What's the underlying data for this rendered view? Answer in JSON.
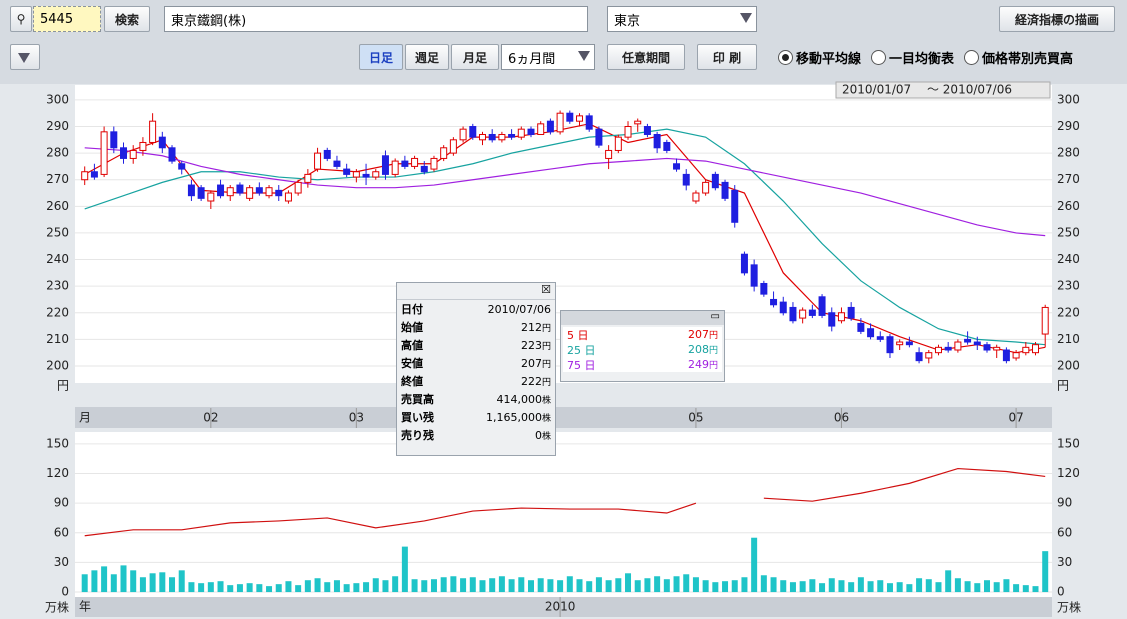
{
  "toolbar": {
    "code": "5445",
    "search": "検索",
    "company": "東京鐵鋼(株)",
    "market": "東京",
    "economic": "経済指標の描画",
    "periods": [
      "日足",
      "週足",
      "月足"
    ],
    "span": "6ヵ月間",
    "custom": "任意期間",
    "print": "印 刷",
    "overlays": [
      "移動平均線",
      "一目均衡表",
      "価格帯別売買高"
    ],
    "date_range": "2010/01/07　 ～ 2010/07/06"
  },
  "info_box": {
    "rows": [
      {
        "label": "日付",
        "value": "2010/07/06"
      },
      {
        "label": "始値",
        "value": 212,
        "unit": "円"
      },
      {
        "label": "高値",
        "value": 223,
        "unit": "円"
      },
      {
        "label": "安値",
        "value": 207,
        "unit": "円"
      },
      {
        "label": "終値",
        "value": 222,
        "unit": "円"
      },
      {
        "label": "売買高",
        "value": 414000,
        "value_label": "414,000",
        "unit": "株"
      },
      {
        "label": "買い残",
        "value": 1165000,
        "value_label": "1,165,000",
        "unit": "株"
      },
      {
        "label": "売り残",
        "value": 0,
        "unit": "株"
      }
    ]
  },
  "chart_data": [
    {
      "type": "candlestick",
      "y_unit": "円",
      "x_unit": "月",
      "xlim": [
        -1,
        99.7
      ],
      "ylim": [
        193.6,
        305.6
      ],
      "yticks": [
        200,
        210,
        220,
        230,
        240,
        250,
        260,
        270,
        280,
        290,
        300
      ],
      "xticks": [
        {
          "value": 13,
          "label": "02"
        },
        {
          "value": 28,
          "label": "03"
        },
        {
          "value": 63,
          "label": "05"
        },
        {
          "value": 78,
          "label": "06"
        },
        {
          "value": 96,
          "label": "07"
        }
      ],
      "up_color": "#e00000",
      "down_color": "#1f1fe0",
      "candles": [
        [
          270,
          275,
          268,
          273
        ],
        [
          273,
          276,
          270,
          271
        ],
        [
          272,
          290,
          271,
          288
        ],
        [
          288,
          290,
          280,
          282
        ],
        [
          282,
          284,
          276,
          278
        ],
        [
          278,
          283,
          276,
          281
        ],
        [
          281,
          286,
          279,
          284
        ],
        [
          284,
          295,
          283,
          292
        ],
        [
          286,
          288,
          280,
          282
        ],
        [
          282,
          283,
          276,
          277
        ],
        [
          276,
          277,
          272,
          274
        ],
        [
          268,
          270,
          262,
          264
        ],
        [
          267,
          268,
          262,
          263
        ],
        [
          262,
          266,
          259,
          265
        ],
        [
          268,
          270,
          263,
          264
        ],
        [
          264,
          268,
          262,
          267
        ],
        [
          268,
          269,
          264,
          265
        ],
        [
          263,
          268,
          262,
          267
        ],
        [
          267,
          269,
          264,
          265
        ],
        [
          264,
          268,
          263,
          267
        ],
        [
          266,
          268,
          262,
          264
        ],
        [
          262,
          266,
          261,
          265
        ],
        [
          265,
          270,
          264,
          269
        ],
        [
          269,
          274,
          267,
          272
        ],
        [
          274,
          282,
          273,
          280
        ],
        [
          281,
          282,
          277,
          278
        ],
        [
          277,
          279,
          274,
          275
        ],
        [
          274,
          276,
          271,
          272
        ],
        [
          271,
          274,
          269,
          273
        ],
        [
          272,
          276,
          268,
          271
        ],
        [
          271,
          274,
          270,
          273
        ],
        [
          279,
          281,
          270,
          272
        ],
        [
          272,
          278,
          271,
          277
        ],
        [
          277,
          279,
          274,
          275
        ],
        [
          275,
          279,
          274,
          278
        ],
        [
          275,
          277,
          272,
          273
        ],
        [
          274,
          279,
          273,
          278
        ],
        [
          278,
          283,
          277,
          282
        ],
        [
          280,
          286,
          279,
          285
        ],
        [
          285,
          290,
          284,
          289
        ],
        [
          290,
          291,
          285,
          286
        ],
        [
          285,
          288,
          283,
          287
        ],
        [
          287,
          289,
          284,
          285
        ],
        [
          285,
          288,
          284,
          287
        ],
        [
          287,
          289,
          285,
          286
        ],
        [
          286,
          290,
          285,
          289
        ],
        [
          289,
          290,
          286,
          287
        ],
        [
          287,
          292,
          287,
          291
        ],
        [
          292,
          293,
          287,
          288
        ],
        [
          288,
          296,
          287,
          295
        ],
        [
          295,
          296,
          291,
          292
        ],
        [
          292,
          295,
          290,
          294
        ],
        [
          294,
          295,
          288,
          289
        ],
        [
          289,
          290,
          282,
          283
        ],
        [
          278,
          283,
          274,
          281
        ],
        [
          281,
          287,
          280,
          286
        ],
        [
          286,
          292,
          285,
          290
        ],
        [
          291,
          293,
          288,
          292
        ],
        [
          290,
          291,
          286,
          287
        ],
        [
          287,
          288,
          280,
          282
        ],
        [
          284,
          285,
          280,
          281
        ],
        [
          276,
          278,
          273,
          274
        ],
        [
          272,
          274,
          266,
          268
        ],
        [
          262,
          266,
          261,
          265
        ],
        [
          265,
          270,
          264,
          269
        ],
        [
          272,
          273,
          266,
          267
        ],
        [
          269,
          270,
          262,
          263
        ],
        [
          266,
          268,
          252,
          254
        ],
        [
          242,
          243,
          234,
          235
        ],
        [
          238,
          240,
          228,
          230
        ],
        [
          231,
          232,
          226,
          227
        ],
        [
          225,
          228,
          222,
          223
        ],
        [
          224,
          226,
          219,
          220
        ],
        [
          222,
          224,
          216,
          217
        ],
        [
          218,
          222,
          216,
          221
        ],
        [
          221,
          223,
          218,
          219
        ],
        [
          226,
          227,
          218,
          219
        ],
        [
          220,
          222,
          213,
          215
        ],
        [
          217,
          222,
          216,
          220
        ],
        [
          222,
          224,
          217,
          218
        ],
        [
          216,
          218,
          212,
          213
        ],
        [
          214,
          216,
          210,
          211
        ],
        [
          211,
          213,
          209,
          210
        ],
        [
          211,
          212,
          203,
          205
        ],
        [
          208,
          210,
          206,
          209
        ],
        [
          209,
          211,
          207,
          208
        ],
        [
          205,
          207,
          201,
          202
        ],
        [
          203,
          206,
          201,
          205
        ],
        [
          205,
          208,
          204,
          207
        ],
        [
          207,
          209,
          205,
          206
        ],
        [
          206,
          210,
          205,
          209
        ],
        [
          210,
          213,
          208,
          209
        ],
        [
          209,
          211,
          206,
          208
        ],
        [
          208,
          209,
          205,
          206
        ],
        [
          206,
          208,
          203,
          207
        ],
        [
          206,
          207,
          201,
          202
        ],
        [
          203,
          206,
          202,
          205
        ],
        [
          205,
          209,
          204,
          207
        ],
        [
          205,
          209,
          204,
          208
        ],
        [
          212,
          223,
          207,
          222
        ]
      ],
      "series": [
        {
          "name": "5 日",
          "color": "#e00000",
          "latest": 207,
          "x": [
            0,
            4,
            8,
            12,
            16,
            20,
            24,
            28,
            32,
            36,
            40,
            44,
            48,
            52,
            56,
            60,
            64,
            68,
            72,
            76,
            80,
            84,
            88,
            92,
            96,
            99
          ],
          "values": [
            272,
            280,
            285,
            266,
            265,
            265,
            274,
            273,
            276,
            276,
            286,
            286,
            288,
            291,
            284,
            287,
            270,
            265,
            235,
            220,
            217,
            211,
            206,
            208,
            205,
            207
          ]
        },
        {
          "name": "25 日",
          "color": "#17a3a0",
          "latest": 208,
          "x": [
            0,
            4,
            8,
            12,
            16,
            20,
            24,
            28,
            32,
            36,
            40,
            44,
            48,
            52,
            56,
            60,
            64,
            68,
            72,
            76,
            80,
            84,
            88,
            92,
            96,
            99
          ],
          "values": [
            259,
            264,
            269,
            273,
            273,
            271,
            270,
            271,
            271,
            273,
            276,
            280,
            283,
            286,
            287,
            289,
            286,
            276,
            262,
            246,
            232,
            222,
            214,
            210,
            209,
            208
          ]
        },
        {
          "name": "75 日",
          "color": "#a020e0",
          "latest": 249,
          "x": [
            0,
            4,
            8,
            12,
            16,
            20,
            24,
            28,
            32,
            36,
            40,
            44,
            48,
            52,
            56,
            60,
            64,
            68,
            72,
            76,
            80,
            84,
            88,
            92,
            96,
            99
          ],
          "values": [
            282,
            281,
            279,
            275,
            272,
            270,
            268,
            267,
            267,
            268,
            270,
            272,
            274,
            276,
            277,
            278,
            277,
            274,
            271,
            268,
            265,
            261,
            257,
            253,
            250,
            249
          ]
        }
      ]
    },
    {
      "type": "bar",
      "y_unit": "万株",
      "x_unit": "年",
      "xlim": [
        -1,
        99.7
      ],
      "ylim": [
        -5,
        162
      ],
      "yticks": [
        0,
        30,
        60,
        90,
        120,
        150
      ],
      "xticks": [
        {
          "value": 49,
          "label": "2010"
        }
      ],
      "color": "#1fc4c8",
      "values": [
        18,
        22,
        26,
        18,
        27,
        22,
        15,
        19,
        20,
        15,
        22,
        10,
        9,
        10,
        11,
        7,
        8,
        9,
        8,
        6,
        8,
        11,
        7,
        12,
        14,
        10,
        12,
        8,
        9,
        10,
        14,
        12,
        16,
        46,
        13,
        12,
        13,
        15,
        16,
        14,
        15,
        12,
        14,
        16,
        13,
        15,
        12,
        14,
        13,
        12,
        16,
        13,
        11,
        15,
        12,
        14,
        19,
        12,
        14,
        16,
        13,
        16,
        18,
        15,
        12,
        10,
        11,
        12,
        15,
        55,
        17,
        15,
        12,
        10,
        11,
        13,
        9,
        14,
        12,
        10,
        15,
        11,
        12,
        9,
        10,
        8,
        14,
        13,
        10,
        22,
        14,
        11,
        9,
        12,
        10,
        13,
        8,
        7,
        6,
        41.4
      ],
      "series": [
        {
          "color": "#d01010",
          "x": [
            0,
            5,
            10,
            15,
            20,
            25,
            30,
            35,
            40,
            45,
            50,
            55,
            60,
            63,
            66,
            70,
            75,
            80,
            85,
            90,
            95,
            99
          ],
          "values": [
            57,
            63,
            63,
            70,
            72,
            75,
            65,
            72,
            82,
            85,
            84,
            84,
            80,
            90,
            null,
            95,
            92,
            100,
            110,
            125,
            122,
            117
          ]
        }
      ]
    }
  ]
}
